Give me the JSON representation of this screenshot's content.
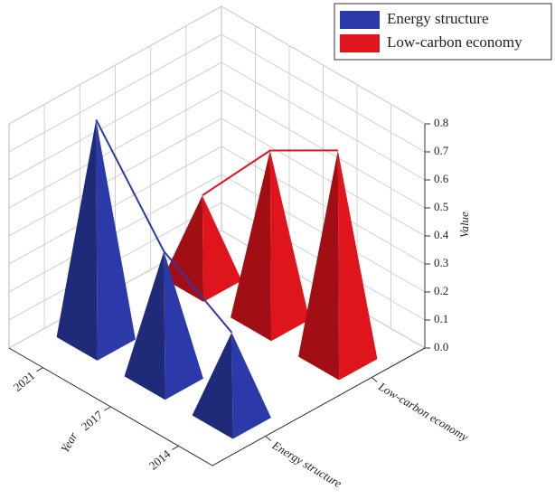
{
  "chart_data": {
    "type": "pyramid3d",
    "categories": [
      "2014",
      "2017",
      "2021"
    ],
    "xlabel": "Year",
    "ylabel": "Value",
    "series": [
      {
        "name": "Energy structure",
        "color": "#2b3aa8",
        "values": [
          0.3,
          0.45,
          0.78
        ]
      },
      {
        "name": "Low-carbon economy",
        "color": "#e0141c",
        "values": [
          0.74,
          0.6,
          0.3
        ]
      }
    ],
    "ylim": [
      0,
      0.8
    ],
    "yticks": [
      {
        "value": 0,
        "label": "0.0"
      },
      0.1,
      0.2,
      0.3,
      0.4,
      0.5,
      0.6,
      0.7,
      0.8
    ],
    "grid": true,
    "legend": "upper right"
  }
}
